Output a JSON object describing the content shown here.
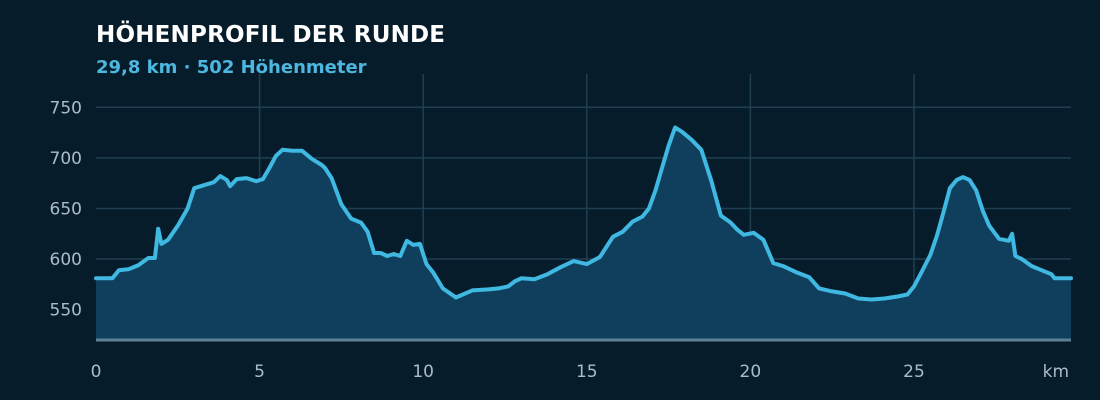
{
  "chart_data": {
    "type": "area",
    "title": "HÖHENPROFIL DER RUNDE",
    "subtitle": "29,8 km · 502 Höhenmeter",
    "x_unit_label": "km",
    "xlim": [
      0,
      29.8
    ],
    "ylim": [
      520,
      775
    ],
    "x_ticks": [
      0,
      5,
      10,
      15,
      20,
      25
    ],
    "y_ticks": [
      550,
      600,
      650,
      700,
      750
    ],
    "grid": true,
    "colors": {
      "background": "#071c2b",
      "grid": "#1f3e52",
      "line": "#3fb8e2",
      "fill": "#0f3f5d",
      "baseline": "#5d7f93"
    },
    "x": [
      0,
      0.5,
      0.7,
      1.0,
      1.3,
      1.6,
      1.8,
      1.9,
      2.0,
      2.2,
      2.5,
      2.8,
      3.0,
      3.3,
      3.6,
      3.8,
      4.0,
      4.1,
      4.3,
      4.6,
      4.9,
      5.1,
      5.3,
      5.5,
      5.7,
      6.0,
      6.3,
      6.6,
      6.9,
      7.0,
      7.2,
      7.5,
      7.8,
      8.1,
      8.3,
      8.5,
      8.7,
      8.9,
      9.1,
      9.3,
      9.5,
      9.7,
      9.9,
      10.1,
      10.3,
      10.6,
      11.0,
      11.5,
      12.0,
      12.3,
      12.6,
      12.8,
      13.0,
      13.4,
      13.8,
      14.2,
      14.6,
      15.0,
      15.4,
      15.8,
      16.1,
      16.4,
      16.7,
      16.9,
      17.1,
      17.3,
      17.5,
      17.7,
      17.9,
      18.2,
      18.5,
      18.8,
      19.1,
      19.4,
      19.6,
      19.8,
      20.1,
      20.4,
      20.7,
      21.0,
      21.4,
      21.8,
      22.1,
      22.5,
      22.9,
      23.3,
      23.7,
      24.1,
      24.5,
      24.8,
      25.0,
      25.2,
      25.5,
      25.7,
      25.9,
      26.1,
      26.3,
      26.5,
      26.7,
      26.9,
      27.1,
      27.3,
      27.6,
      27.9,
      28.0,
      28.1,
      28.3,
      28.6,
      28.9,
      29.2,
      29.3,
      29.8
    ],
    "y": [
      581,
      581,
      589,
      590,
      594,
      601,
      601,
      630,
      615,
      619,
      633,
      650,
      670,
      673,
      676,
      682,
      678,
      672,
      679,
      680,
      677,
      679,
      690,
      702,
      708,
      707,
      707,
      699,
      693,
      690,
      680,
      654,
      640,
      636,
      627,
      606,
      606,
      603,
      605,
      603,
      618,
      614,
      615,
      595,
      587,
      571,
      562,
      569,
      570,
      571,
      573,
      578,
      581,
      580,
      585,
      592,
      598,
      595,
      602,
      622,
      627,
      637,
      642,
      650,
      668,
      690,
      712,
      730,
      726,
      718,
      708,
      678,
      643,
      636,
      629,
      624,
      626,
      619,
      596,
      593,
      587,
      582,
      571,
      568,
      566,
      561,
      560,
      561,
      563,
      565,
      573,
      585,
      604,
      623,
      646,
      670,
      678,
      681,
      678,
      668,
      648,
      633,
      620,
      618,
      625,
      603,
      600,
      593,
      589,
      585,
      581,
      581
    ]
  }
}
